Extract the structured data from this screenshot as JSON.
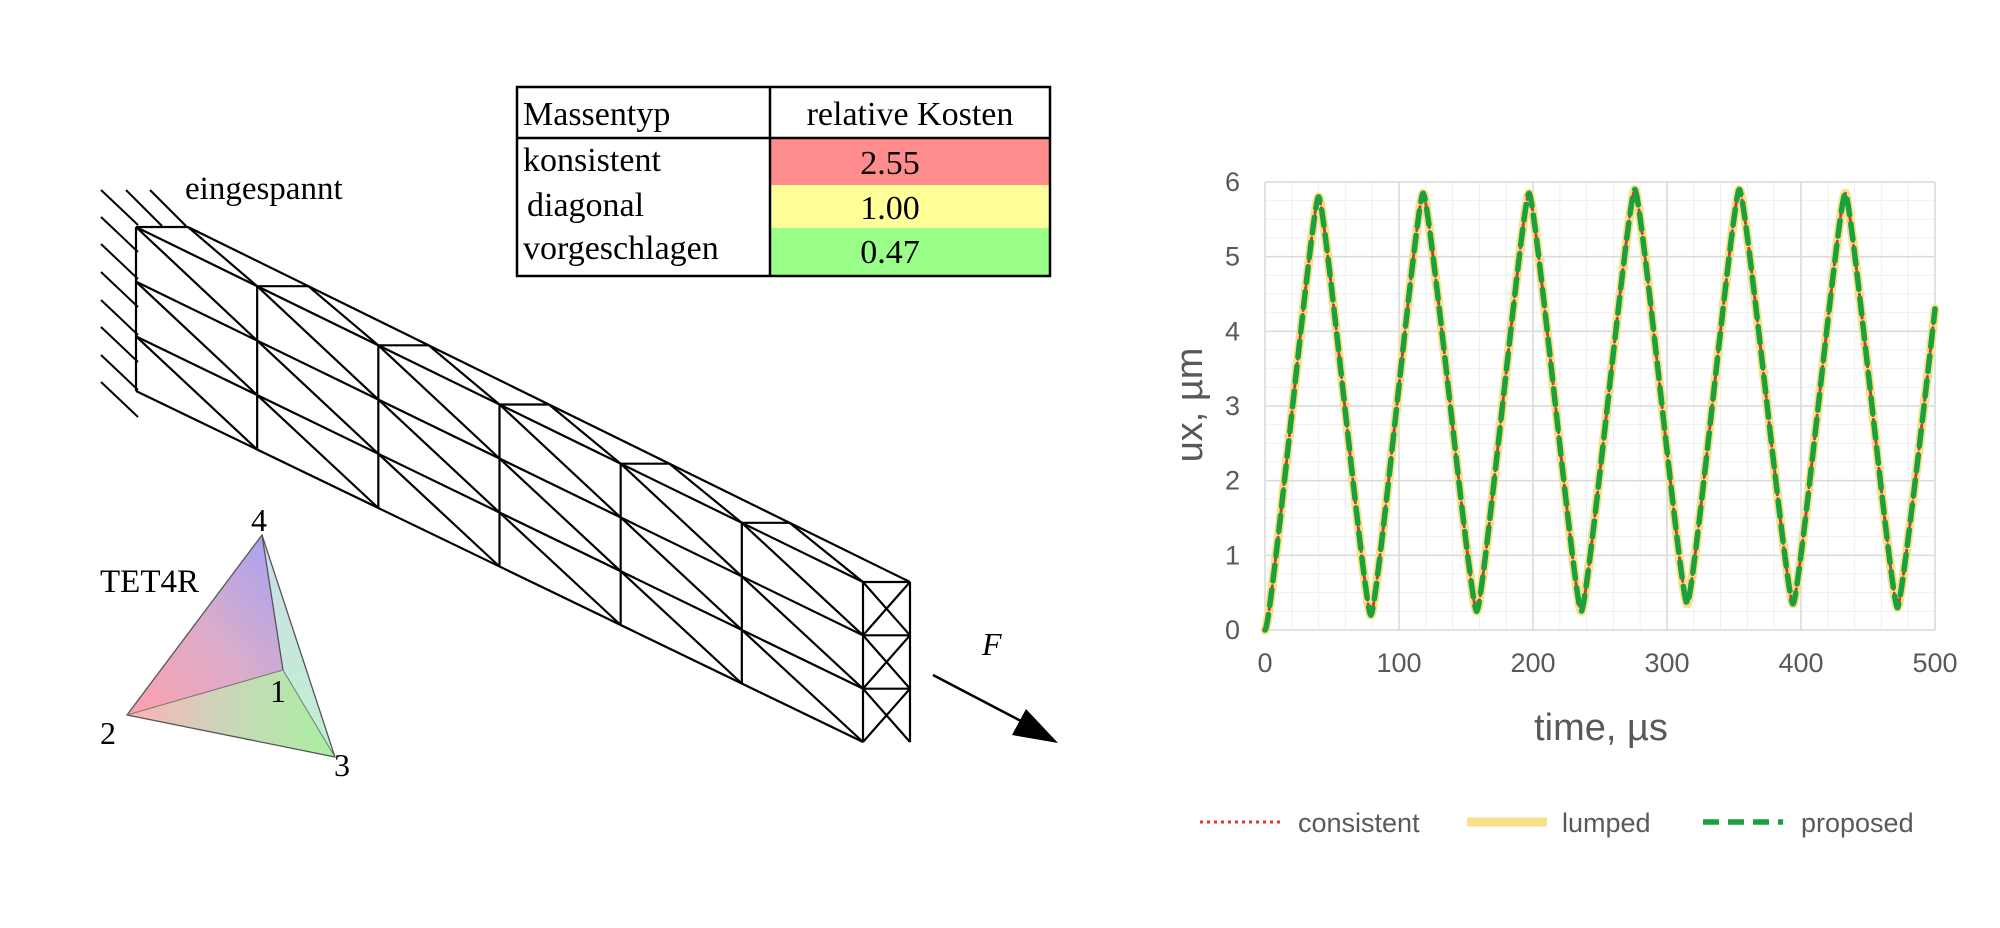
{
  "figure": {
    "clamp_label": "eingespannt",
    "element_label": "TET4R",
    "node_labels": [
      "1",
      "2",
      "3",
      "4"
    ],
    "force_label": "F"
  },
  "cost_table": {
    "headers": [
      "Massentyp",
      "relative Kosten"
    ],
    "rows": [
      {
        "type": "konsistent",
        "cost": "2.55",
        "color": "#ff8c8c"
      },
      {
        "type": "diagonal",
        "cost": "1.00",
        "color": "#ffff99"
      },
      {
        "type": "vorgeschlagen",
        "cost": "0.47",
        "color": "#99ff88"
      }
    ]
  },
  "chart_data": {
    "type": "line",
    "xlabel": "time, µs",
    "ylabel": "ux, µm",
    "xlim": [
      0,
      500
    ],
    "ylim": [
      0,
      6
    ],
    "xticks": [
      "0",
      "100",
      "200",
      "300",
      "400",
      "500"
    ],
    "yticks": [
      "0",
      "1",
      "2",
      "3",
      "4",
      "5",
      "6"
    ],
    "grid": true,
    "legend_position": "bottom",
    "series": [
      {
        "name": "consistent",
        "color": "#e83030",
        "style": "dotted",
        "x": [
          0,
          40,
          79,
          118,
          158,
          197,
          236,
          276,
          315,
          354,
          394,
          433,
          472,
          500
        ],
        "y": [
          0,
          5.8,
          0.2,
          5.85,
          0.25,
          5.85,
          0.25,
          5.9,
          0.35,
          5.9,
          0.35,
          5.85,
          0.3,
          4.3
        ]
      },
      {
        "name": "lumped",
        "color": "#f7e08a",
        "style": "solid",
        "x": [
          0,
          40,
          79,
          118,
          158,
          197,
          236,
          276,
          315,
          354,
          394,
          433,
          472,
          500
        ],
        "y": [
          0,
          5.8,
          0.2,
          5.85,
          0.25,
          5.85,
          0.25,
          5.9,
          0.35,
          5.9,
          0.35,
          5.85,
          0.3,
          4.3
        ]
      },
      {
        "name": "proposed",
        "color": "#1aa03c",
        "style": "dashed",
        "x": [
          0,
          40,
          79,
          118,
          158,
          197,
          236,
          276,
          315,
          354,
          394,
          433,
          472,
          500
        ],
        "y": [
          0,
          5.8,
          0.2,
          5.85,
          0.25,
          5.85,
          0.25,
          5.9,
          0.35,
          5.9,
          0.35,
          5.85,
          0.3,
          4.3
        ]
      }
    ]
  }
}
